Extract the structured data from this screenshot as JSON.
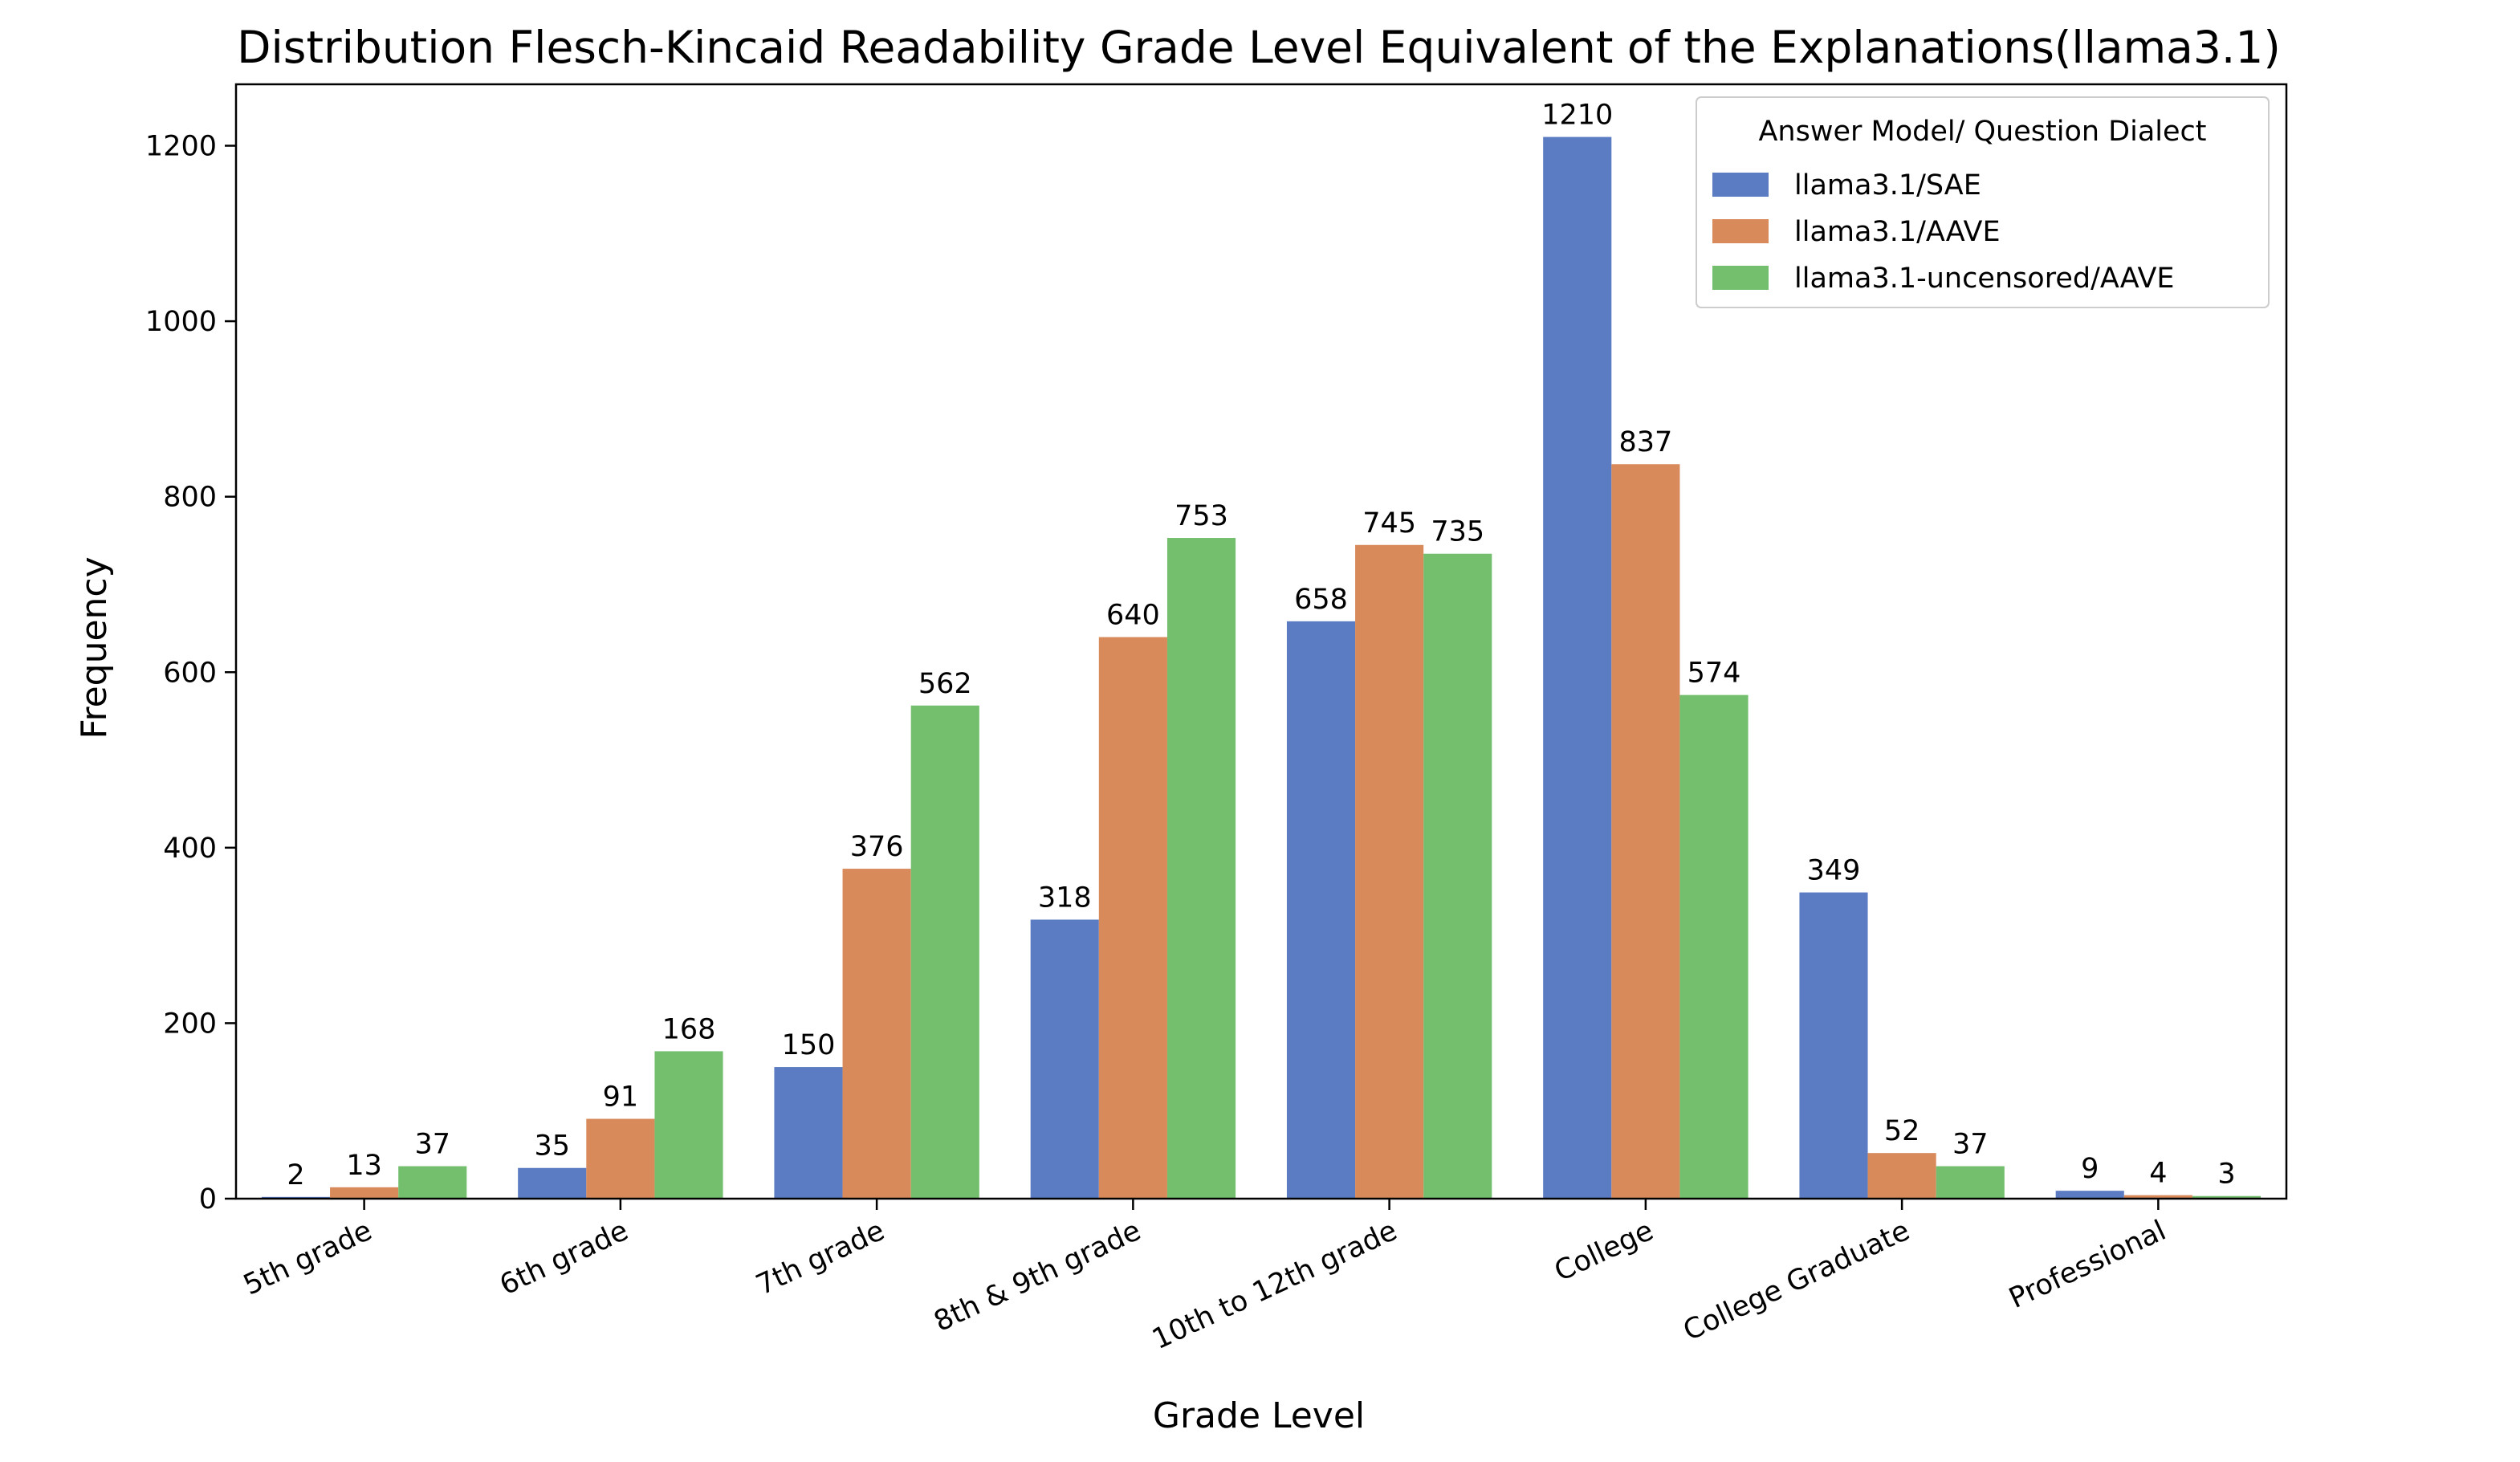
{
  "chart_data": {
    "type": "bar",
    "title": "Distribution Flesch-Kincaid Readability Grade Level Equivalent of the Explanations(llama3.1)",
    "xlabel": "Grade Level",
    "ylabel": "Frequency",
    "ylim": [
      0,
      1270
    ],
    "yticks": [
      0,
      200,
      400,
      600,
      800,
      1000,
      1200
    ],
    "categories": [
      "5th grade",
      "6th grade",
      "7th grade",
      "8th & 9th grade",
      "10th to 12th grade",
      "College",
      "College Graduate",
      "Professional"
    ],
    "series": [
      {
        "name": "llama3.1/SAE",
        "color": "#5b7cc3",
        "values": [
          2,
          35,
          150,
          318,
          658,
          1210,
          349,
          9
        ]
      },
      {
        "name": "llama3.1/AAVE",
        "color": "#d98a5b",
        "values": [
          13,
          91,
          376,
          640,
          745,
          837,
          52,
          4
        ]
      },
      {
        "name": "llama3.1-uncensored/AAVE",
        "color": "#74bf6e",
        "values": [
          37,
          168,
          562,
          753,
          735,
          574,
          37,
          3
        ]
      }
    ],
    "legend": {
      "title": "Answer Model/ Question Dialect",
      "placement": "top-right"
    },
    "grid": false
  }
}
